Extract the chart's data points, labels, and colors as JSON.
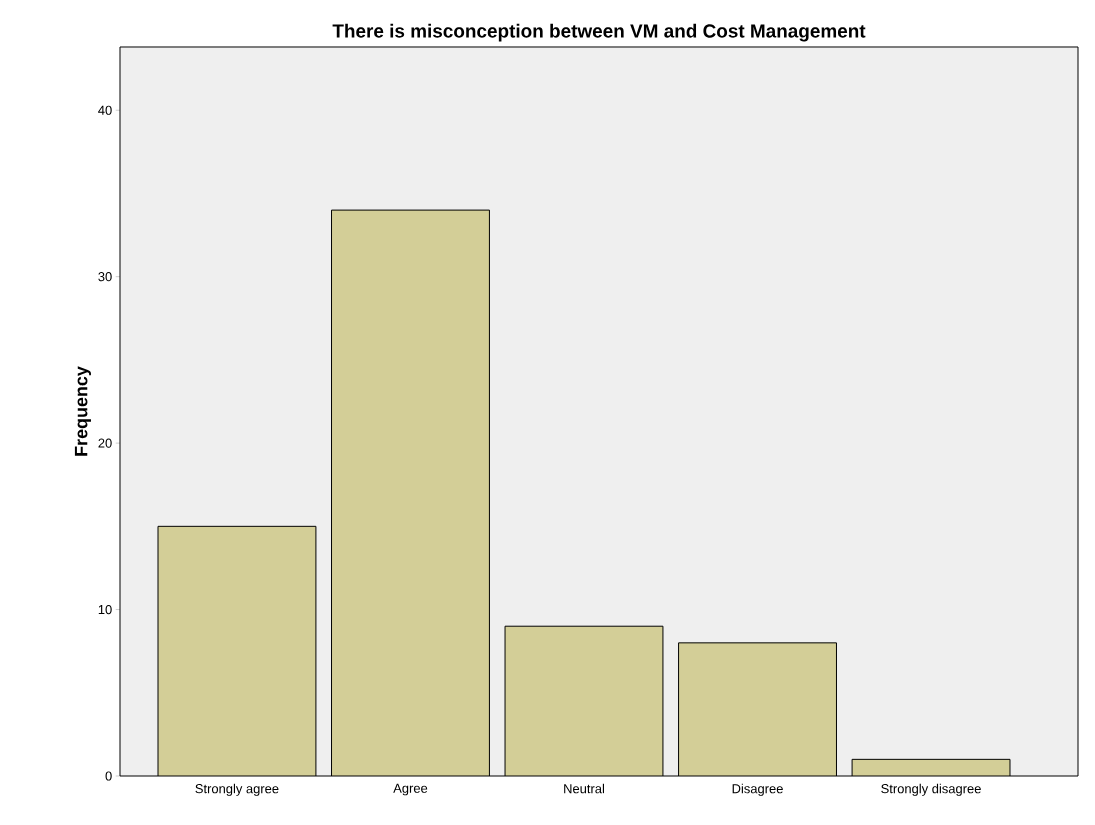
{
  "chart_data": {
    "type": "bar",
    "title": "There is misconception between VM and Cost Management",
    "ylabel": "Frequency",
    "categories": [
      "Strongly agree",
      "Agree",
      "Neutral",
      "Disagree",
      "Strongly disagree"
    ],
    "values": [
      15,
      34,
      9,
      8,
      1
    ],
    "color": "#d3ce97",
    "ylim": [
      0,
      43.8
    ],
    "yticks": [
      0,
      10,
      20,
      30,
      40
    ],
    "grid": false
  }
}
